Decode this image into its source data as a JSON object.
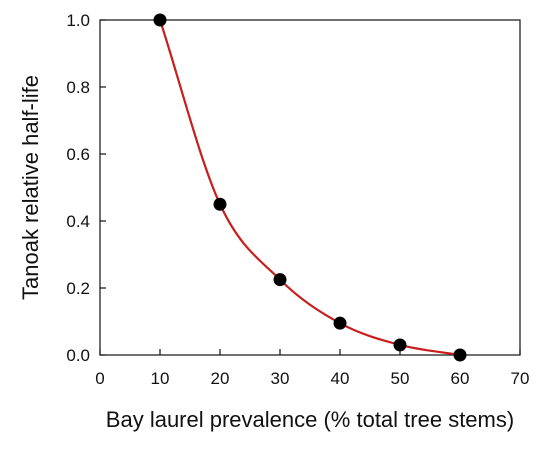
{
  "chart_data": {
    "type": "line",
    "title": "",
    "xlabel": "Bay laurel prevalence (% total tree stems)",
    "ylabel": "Tanoak relative half-life",
    "xlim": [
      0,
      70
    ],
    "ylim": [
      0.0,
      1.0
    ],
    "x_ticks": [
      "0",
      "10",
      "20",
      "30",
      "40",
      "50",
      "60",
      "70"
    ],
    "y_ticks": [
      "0.0",
      "0.2",
      "0.4",
      "0.6",
      "0.8",
      "1.0"
    ],
    "grid": false,
    "legend": "none",
    "series": [
      {
        "points": [
          {
            "x": 10,
            "y": 1.0
          },
          {
            "x": 20,
            "y": 0.45
          },
          {
            "x": 30,
            "y": 0.225
          },
          {
            "x": 40,
            "y": 0.095
          },
          {
            "x": 50,
            "y": 0.03
          },
          {
            "x": 60,
            "y": 0.0
          }
        ],
        "marker_color": "#000000",
        "line_color": "#c81e1e"
      }
    ]
  }
}
